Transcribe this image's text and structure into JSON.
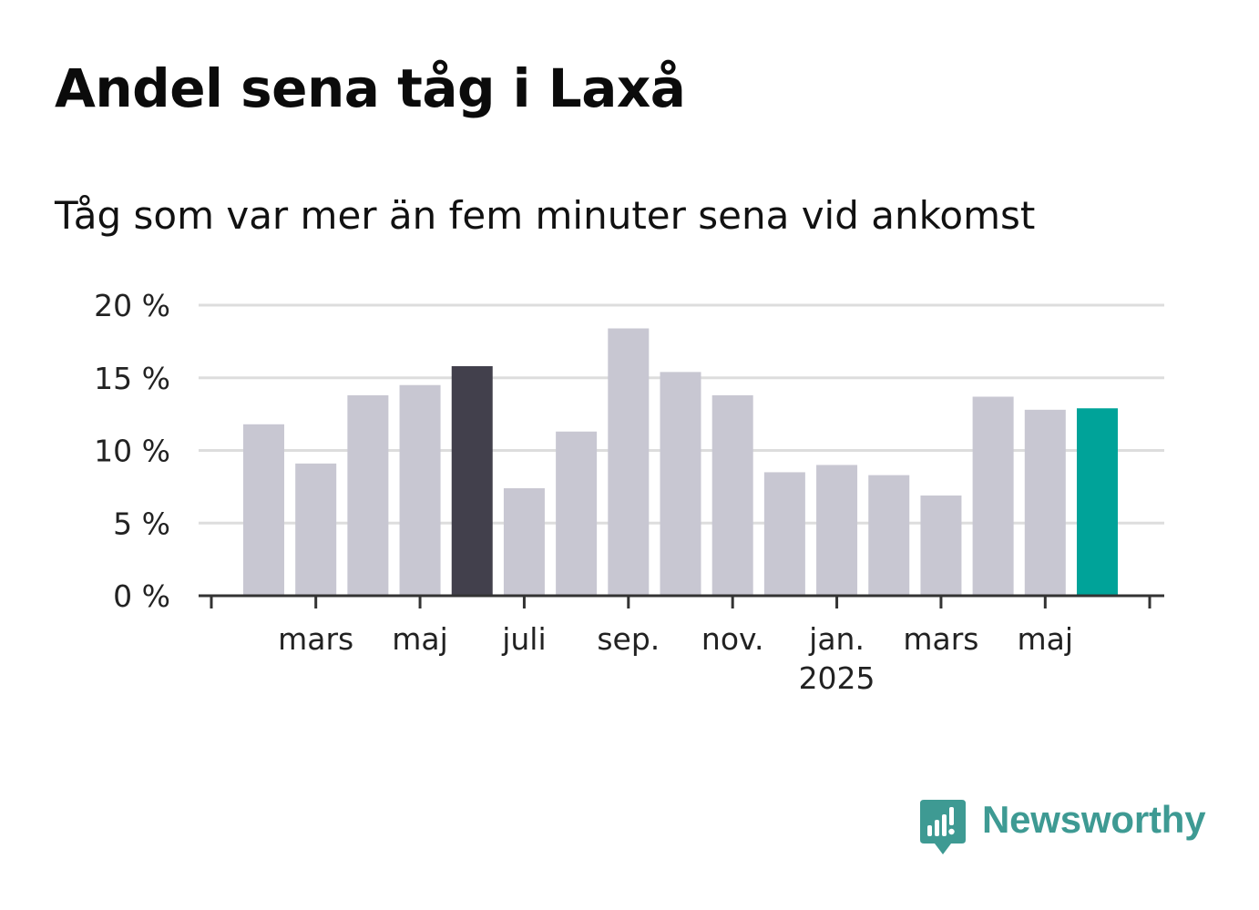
{
  "title": "Andel sena tåg i Laxå",
  "subtitle": "Tåg som var mer än fem minuter sena vid ankomst",
  "brand": {
    "name": "Newsworthy",
    "logo_icon": "newsworthy-bar-chart-logo-icon",
    "color": "#3e9a93"
  },
  "colors": {
    "bar_default": "#c8c7d2",
    "bar_highlight": "#42404c",
    "bar_latest": "#00a399",
    "grid": "#dddddd",
    "axis": "#333333",
    "text": "#222222"
  },
  "chart_data": {
    "type": "bar",
    "title": "Andel sena tåg i Laxå",
    "subtitle": "Tåg som var mer än fem minuter sena vid ankomst",
    "x": [
      "2024-02",
      "2024-03",
      "2024-04",
      "2024-05",
      "2024-06",
      "2024-07",
      "2024-08",
      "2024-09",
      "2024-10",
      "2024-11",
      "2024-12",
      "2025-01",
      "2025-02",
      "2025-03",
      "2025-04",
      "2025-05",
      "2025-06"
    ],
    "values": [
      11.8,
      9.1,
      13.8,
      14.5,
      15.8,
      7.4,
      11.3,
      18.4,
      15.4,
      13.8,
      8.5,
      9.0,
      8.3,
      6.9,
      13.7,
      12.8,
      12.9
    ],
    "highlight": [
      "none",
      "none",
      "none",
      "none",
      "peak",
      "none",
      "none",
      "none",
      "none",
      "none",
      "none",
      "none",
      "none",
      "none",
      "none",
      "none",
      "latest"
    ],
    "ylim": [
      0,
      20
    ],
    "yticks": [
      0,
      5,
      10,
      15,
      20
    ],
    "ytick_labels": [
      "0 %",
      "5 %",
      "10 %",
      "15 %",
      "20 %"
    ],
    "xticks": [
      {
        "x": "2024-03",
        "label": "mars",
        "sublabel": ""
      },
      {
        "x": "2024-05",
        "label": "maj",
        "sublabel": ""
      },
      {
        "x": "2024-07",
        "label": "juli",
        "sublabel": ""
      },
      {
        "x": "2024-09",
        "label": "sep.",
        "sublabel": ""
      },
      {
        "x": "2024-11",
        "label": "nov.",
        "sublabel": ""
      },
      {
        "x": "2025-01",
        "label": "jan.",
        "sublabel": "2025"
      },
      {
        "x": "2025-03",
        "label": "mars",
        "sublabel": ""
      },
      {
        "x": "2025-05",
        "label": "maj",
        "sublabel": ""
      }
    ],
    "xlabel": "",
    "ylabel": "",
    "grid": true,
    "legend": "none"
  }
}
